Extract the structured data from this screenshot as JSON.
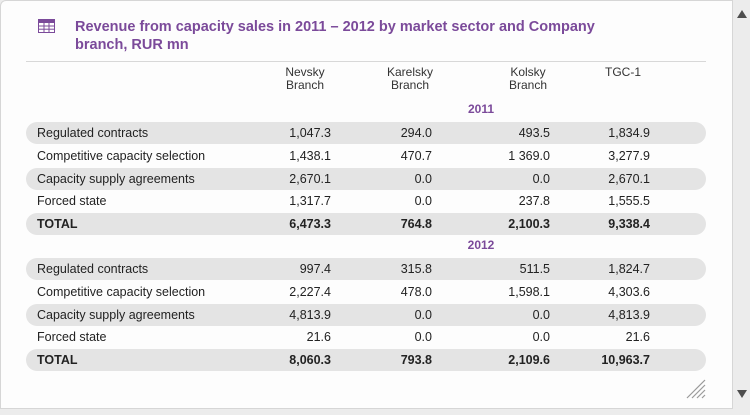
{
  "title": "Revenue from capacity sales in 2011 – 2012 by market sector and Company branch, RUR mn",
  "icons": {
    "title_icon": "table-icon",
    "resize": "resize-grip-icon",
    "scroll_up": "arrow-up-icon",
    "scroll_down": "arrow-down-icon"
  },
  "colors": {
    "accent": "#7b4a9a",
    "row_shade": "#e4e4e4"
  },
  "columns": {
    "c1": [
      "Nevsky",
      "Branch"
    ],
    "c2": [
      "Karelsky",
      "Branch"
    ],
    "c3": [
      "Kolsky",
      "Branch"
    ],
    "c4": [
      "TGC-1"
    ]
  },
  "sections": [
    {
      "year": "2011",
      "rows": [
        [
          "Regulated contracts",
          "1,047.3",
          "294.0",
          "493.5",
          "1,834.9"
        ],
        [
          "Competitive capacity selection",
          "1,438.1",
          "470.7",
          "1 369.0",
          "3,277.9"
        ],
        [
          "Capacity supply agreements",
          "2,670.1",
          "0.0",
          "0.0",
          "2,670.1"
        ],
        [
          "Forced state",
          "1,317.7",
          "0.0",
          "237.8",
          "1,555.5"
        ],
        [
          "TOTAL",
          "6,473.3",
          "764.8",
          "2,100.3",
          "9,338.4"
        ]
      ]
    },
    {
      "year": "2012",
      "rows": [
        [
          "Regulated contracts",
          "997.4",
          "315.8",
          "511.5",
          "1,824.7"
        ],
        [
          "Competitive capacity selection",
          "2,227.4",
          "478.0",
          "1,598.1",
          "4,303.6"
        ],
        [
          "Capacity supply agreements",
          "4,813.9",
          "0.0",
          "0.0",
          "4,813.9"
        ],
        [
          "Forced state",
          "21.6",
          "0.0",
          "0.0",
          "21.6"
        ],
        [
          "TOTAL",
          "8,060.3",
          "793.8",
          "2,109.6",
          "10,963.7"
        ]
      ]
    }
  ]
}
